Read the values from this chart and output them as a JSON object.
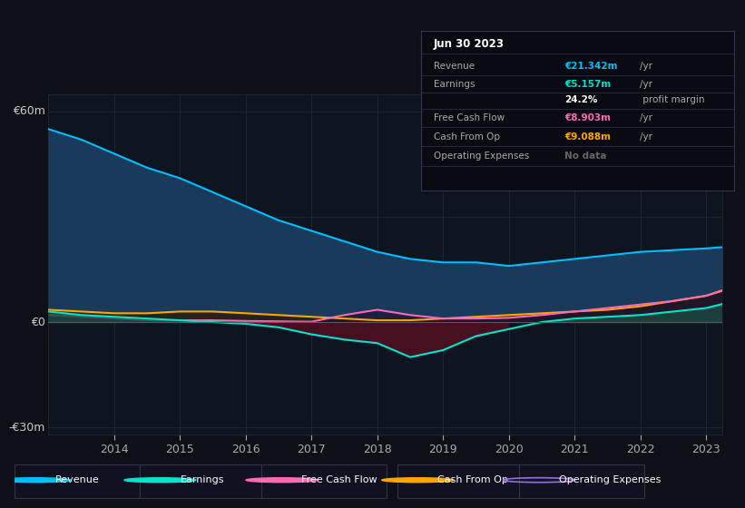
{
  "background_color": "#0d1117",
  "plot_bg_color": "#0d1520",
  "ylabel_top": "€60m",
  "ylabel_zero": "€0",
  "ylabel_bottom": "-€30m",
  "years": [
    2013,
    2013.5,
    2014,
    2014.5,
    2015,
    2015.5,
    2016,
    2016.5,
    2017,
    2017.5,
    2018,
    2018.5,
    2019,
    2019.5,
    2020,
    2020.5,
    2021,
    2021.5,
    2022,
    2022.5,
    2023,
    2023.25
  ],
  "revenue": [
    55,
    52,
    48,
    44,
    41,
    37,
    33,
    29,
    26,
    23,
    20,
    18,
    17,
    17,
    16,
    17,
    18,
    19,
    20,
    20.5,
    21,
    21.342
  ],
  "earnings": [
    3,
    2,
    1.5,
    1,
    0.5,
    0,
    -0.5,
    -1.5,
    -3.5,
    -5,
    -6,
    -10,
    -8,
    -4,
    -2,
    0,
    1,
    1.5,
    2,
    3,
    4,
    5.157
  ],
  "free_cash_flow": [
    2,
    1.5,
    1,
    0.5,
    0.5,
    0.5,
    0.3,
    0.2,
    0.1,
    2,
    3.5,
    2,
    1,
    1,
    1.2,
    2,
    3,
    4,
    5,
    6,
    7.5,
    8.903
  ],
  "cash_from_op": [
    3.5,
    3,
    2.5,
    2.5,
    3,
    3,
    2.5,
    2,
    1.5,
    1,
    0.5,
    0.5,
    1,
    1.5,
    2,
    2.5,
    3,
    3.5,
    4.5,
    6,
    7.5,
    9.088
  ],
  "revenue_color": "#00bfff",
  "revenue_fill": "#1a3a5c",
  "earnings_color": "#00e5cc",
  "earnings_fill_neg": "#4a1020",
  "earnings_fill_pos": "#1a4a40",
  "free_cash_flow_color": "#ff69b4",
  "cash_from_op_color": "#ffa500",
  "operating_expenses_color": "#9370db",
  "legend_items": [
    "Revenue",
    "Earnings",
    "Free Cash Flow",
    "Cash From Op",
    "Operating Expenses"
  ],
  "legend_colors": [
    "#00bfff",
    "#00e5cc",
    "#ff69b4",
    "#ffa500",
    "#9370db"
  ],
  "legend_filled": [
    true,
    true,
    true,
    true,
    false
  ],
  "table_title": "Jun 30 2023",
  "table_rows": [
    [
      "Revenue",
      "€21.342m",
      "/yr",
      "#00bfff"
    ],
    [
      "Earnings",
      "€5.157m",
      "/yr",
      "#00e5cc"
    ],
    [
      "",
      "24.2%",
      " profit margin",
      "#ffffff"
    ],
    [
      "Free Cash Flow",
      "€8.903m",
      "/yr",
      "#ff69b4"
    ],
    [
      "Cash From Op",
      "€9.088m",
      "/yr",
      "#ffa500"
    ],
    [
      "Operating Expenses",
      "No data",
      "",
      "#666666"
    ]
  ],
  "xticks": [
    2014,
    2015,
    2016,
    2017,
    2018,
    2019,
    2020,
    2021,
    2022,
    2023
  ],
  "ylim": [
    -32,
    65
  ]
}
